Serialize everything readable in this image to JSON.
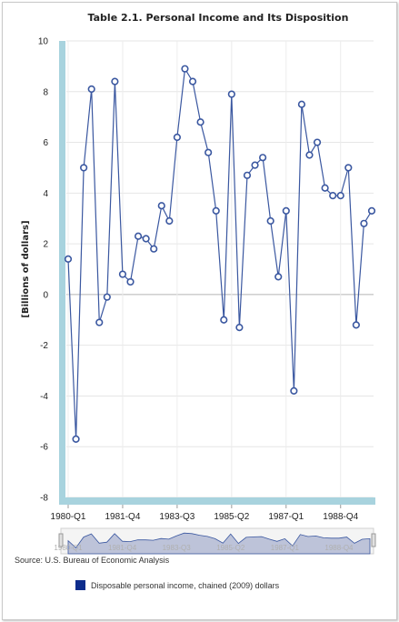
{
  "chart_data": {
    "type": "line",
    "title": "Table 2.1. Personal Income and Its Disposition",
    "xlabel": "",
    "ylabel": "[Billions of dollars]",
    "ylim": [
      -8,
      10
    ],
    "yticks": [
      "10",
      "8",
      "6",
      "4",
      "2",
      "0",
      "-2",
      "-4",
      "-6",
      "-8"
    ],
    "ytick_values": [
      10,
      8,
      6,
      4,
      2,
      0,
      -2,
      -4,
      -6,
      -8
    ],
    "xtick_labels": [
      "1980-Q1",
      "1981-Q4",
      "1983-Q3",
      "1985-Q2",
      "1987-Q1",
      "1988-Q4"
    ],
    "xtick_index": [
      0,
      7,
      14,
      21,
      28,
      35
    ],
    "categories": [
      "1980-Q1",
      "1980-Q2",
      "1980-Q3",
      "1980-Q4",
      "1981-Q1",
      "1981-Q2",
      "1981-Q3",
      "1981-Q4",
      "1982-Q1",
      "1982-Q2",
      "1982-Q3",
      "1982-Q4",
      "1983-Q1",
      "1983-Q2",
      "1983-Q3",
      "1983-Q4",
      "1984-Q1",
      "1984-Q2",
      "1984-Q3",
      "1984-Q4",
      "1985-Q1",
      "1985-Q2",
      "1985-Q3",
      "1985-Q4",
      "1986-Q1",
      "1986-Q2",
      "1986-Q3",
      "1986-Q4",
      "1987-Q1",
      "1987-Q2",
      "1987-Q3",
      "1987-Q4",
      "1988-Q1",
      "1988-Q2",
      "1988-Q3",
      "1988-Q4",
      "1989-Q1",
      "1989-Q2",
      "1989-Q3",
      "1989-Q4"
    ],
    "series": [
      {
        "name": "Disposable personal income, chained (2009) dollars",
        "values": [
          1.4,
          -5.7,
          5.0,
          8.1,
          -1.1,
          -0.1,
          8.4,
          0.8,
          0.5,
          2.3,
          2.2,
          1.8,
          3.5,
          2.9,
          6.2,
          8.9,
          8.4,
          6.8,
          5.6,
          3.3,
          -1.0,
          7.9,
          -1.3,
          4.7,
          5.1,
          5.4,
          2.9,
          0.7,
          3.3,
          -3.8,
          7.5,
          5.5,
          6.0,
          4.2,
          3.9,
          3.9,
          5.0,
          -1.2,
          2.8,
          3.3
        ]
      }
    ],
    "grid": true,
    "legend_position": "bottom-left",
    "colors": {
      "line": "#3a57a0",
      "marker_fill": "#ffffff",
      "axis_band": "#a8d3de",
      "legend_swatch": "#0d2c8c",
      "navigator_fill": "#7a88b8"
    }
  },
  "footer": {
    "source": "Source: U.S. Bureau of Economic Analysis"
  }
}
